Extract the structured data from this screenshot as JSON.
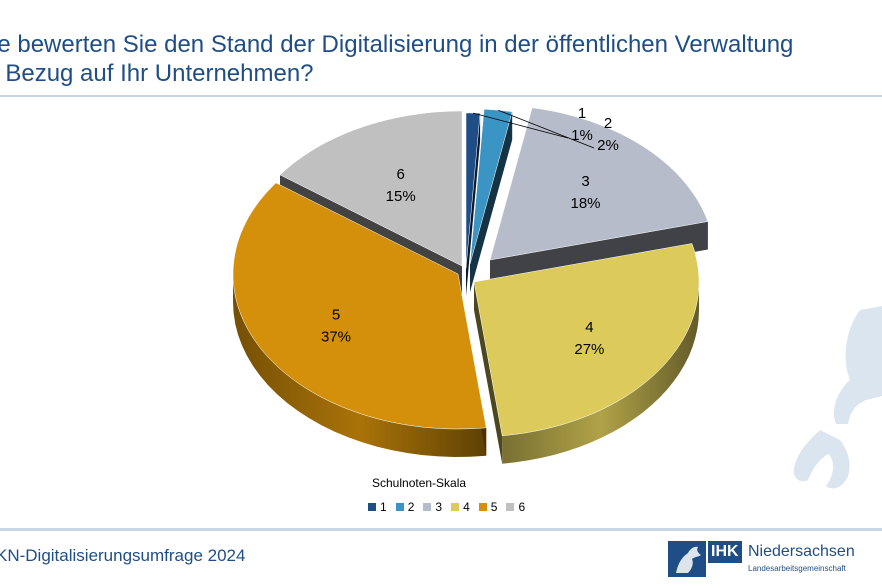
{
  "title": {
    "line1": "ie bewerten Sie den Stand der Digitalisierung in der öffentlichen Verwaltung",
    "line2": "t Bezug auf Ihr Unternehmen?"
  },
  "footer": {
    "text": "KN-Digitalisierungsumfrage 2024"
  },
  "logo": {
    "ihk": "IHK",
    "name": "Niedersachsen",
    "sub": "Landesarbeitsgemeinschaft"
  },
  "chart_data": {
    "type": "pie",
    "style": "3d-exploded",
    "legend_title": "Schulnoten-Skala",
    "legend_position": "bottom",
    "categories": [
      "1",
      "2",
      "3",
      "4",
      "5",
      "6"
    ],
    "values": [
      1,
      2,
      18,
      27,
      37,
      15
    ],
    "value_labels": [
      "1%",
      "2%",
      "18%",
      "27%",
      "37%",
      "15%"
    ],
    "colors": [
      "#1f4e86",
      "#3a94c4",
      "#b7bccb",
      "#dccb5a",
      "#d4900a",
      "#c0c0c0"
    ]
  }
}
